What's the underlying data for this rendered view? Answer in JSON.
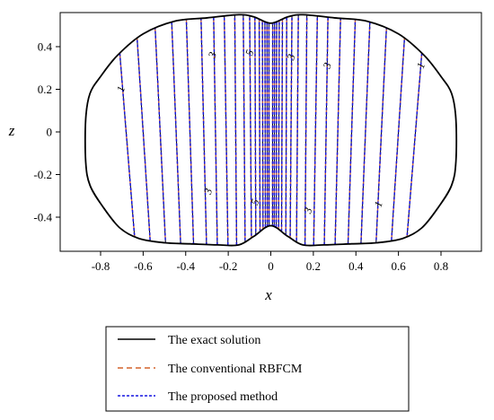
{
  "chart_data": {
    "type": "line",
    "title": "",
    "xlabel": "x",
    "ylabel": "z",
    "xlim": [
      -0.99,
      0.99
    ],
    "ylim": [
      -0.56,
      0.56
    ],
    "x_ticks": [
      -0.8,
      -0.6,
      -0.4,
      -0.2,
      0,
      0.2,
      0.4,
      0.6,
      0.8
    ],
    "x_tick_labels": [
      "-0.8",
      "-0.6",
      "-0.4",
      "-0.2",
      "0",
      "0.2",
      "0.4",
      "0.6",
      "0.8"
    ],
    "y_ticks": [
      0.4,
      0.2,
      0,
      -0.2,
      -0.4
    ],
    "y_tick_labels": [
      "0.4",
      "0.2",
      "0",
      "-0.2",
      "-0.4"
    ],
    "grid": false,
    "legend_position": "bottom",
    "boundary": {
      "x": [
        0,
        0.08,
        0.15,
        0.3,
        0.45,
        0.6,
        0.72,
        0.8,
        0.85,
        0.87,
        0.87,
        0.85,
        0.79,
        0.71,
        0.62,
        0.5,
        0.38,
        0.25,
        0.15,
        0.08,
        0,
        -0.08,
        -0.15,
        -0.25,
        -0.38,
        -0.5,
        -0.62,
        -0.71,
        -0.79,
        -0.85,
        -0.87,
        -0.87,
        -0.85,
        -0.8,
        -0.72,
        -0.6,
        -0.45,
        -0.3,
        -0.15,
        -0.08
      ],
      "z": [
        0.51,
        0.54,
        0.55,
        0.535,
        0.52,
        0.46,
        0.36,
        0.26,
        0.18,
        0.06,
        -0.14,
        -0.25,
        -0.35,
        -0.45,
        -0.5,
        -0.52,
        -0.525,
        -0.53,
        -0.53,
        -0.49,
        -0.44,
        -0.49,
        -0.53,
        -0.53,
        -0.525,
        -0.52,
        -0.5,
        -0.45,
        -0.35,
        -0.25,
        -0.14,
        0.06,
        0.18,
        0.26,
        0.36,
        0.46,
        0.52,
        0.535,
        0.55,
        0.54
      ]
    },
    "contours": {
      "top_x": [
        -0.73,
        -0.64,
        -0.55,
        -0.47,
        -0.4,
        -0.33,
        -0.27,
        -0.22,
        -0.17,
        -0.13,
        -0.1,
        -0.075,
        -0.055,
        -0.04,
        -0.028,
        -0.018,
        -0.009,
        0.009,
        0.018,
        0.028,
        0.04,
        0.055,
        0.075,
        0.1,
        0.13,
        0.17,
        0.22,
        0.27,
        0.33,
        0.4,
        0.47,
        0.55,
        0.64,
        0.73
      ],
      "bottom_x": [
        -0.63,
        -0.56,
        -0.49,
        -0.42,
        -0.36,
        -0.3,
        -0.25,
        -0.2,
        -0.16,
        -0.12,
        -0.09,
        -0.07,
        -0.05,
        -0.036,
        -0.025,
        -0.016,
        -0.008,
        0.008,
        0.016,
        0.025,
        0.036,
        0.05,
        0.07,
        0.09,
        0.12,
        0.16,
        0.2,
        0.25,
        0.3,
        0.36,
        0.42,
        0.49,
        0.56,
        0.63
      ]
    },
    "contour_labels": [
      {
        "text": "1",
        "x": -0.7,
        "z": 0.2
      },
      {
        "text": "3",
        "x": -0.27,
        "z": 0.36
      },
      {
        "text": "5",
        "x": -0.095,
        "z": 0.37
      },
      {
        "text": "3",
        "x": 0.1,
        "z": 0.35
      },
      {
        "text": "3",
        "x": 0.27,
        "z": 0.31
      },
      {
        "text": "1",
        "x": 0.71,
        "z": 0.31
      },
      {
        "text": "3",
        "x": -0.29,
        "z": -0.28
      },
      {
        "text": "5",
        "x": -0.07,
        "z": -0.33
      },
      {
        "text": "3",
        "x": 0.18,
        "z": -0.37
      },
      {
        "text": "1",
        "x": 0.51,
        "z": -0.34
      }
    ],
    "series": [
      {
        "name": "The exact solution",
        "color": "#000000",
        "style": "solid"
      },
      {
        "name": "The conventional RBFCM",
        "color": "#d4622a",
        "style": "dashed"
      },
      {
        "name": "The proposed method",
        "color": "#1515e0",
        "style": "dotted"
      }
    ]
  }
}
